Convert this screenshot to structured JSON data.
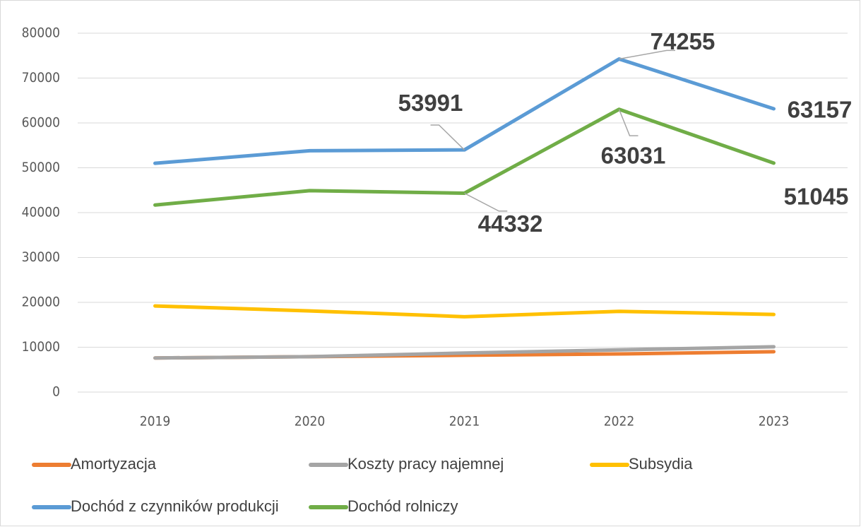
{
  "chart_data": {
    "type": "line",
    "categories": [
      "2019",
      "2020",
      "2021",
      "2022",
      "2023"
    ],
    "ylim": [
      0,
      80000
    ],
    "yticks": [
      0,
      10000,
      20000,
      30000,
      40000,
      50000,
      60000,
      70000,
      80000
    ],
    "grid": true,
    "legend": "bottom",
    "series": [
      {
        "name": "Amortyzacja",
        "color": "#ed7d31",
        "values": [
          7600,
          7900,
          8200,
          8500,
          9000
        ]
      },
      {
        "name": "Koszty pracy najemnej",
        "color": "#a5a5a5",
        "values": [
          7600,
          7900,
          8700,
          9400,
          10100
        ]
      },
      {
        "name": "Subsydia",
        "color": "#ffc000",
        "values": [
          19200,
          18100,
          16800,
          18000,
          17300
        ]
      },
      {
        "name": "Dochód z czynników produkcji",
        "color": "#5b9bd5",
        "values": [
          51000,
          53800,
          53991,
          74255,
          63157
        ],
        "labeled_points": [
          2,
          3,
          4
        ]
      },
      {
        "name": "Dochód rolniczy",
        "color": "#70ad47",
        "values": [
          41700,
          44900,
          44332,
          63031,
          51045
        ],
        "labeled_points": [
          2,
          3,
          4
        ]
      }
    ]
  }
}
